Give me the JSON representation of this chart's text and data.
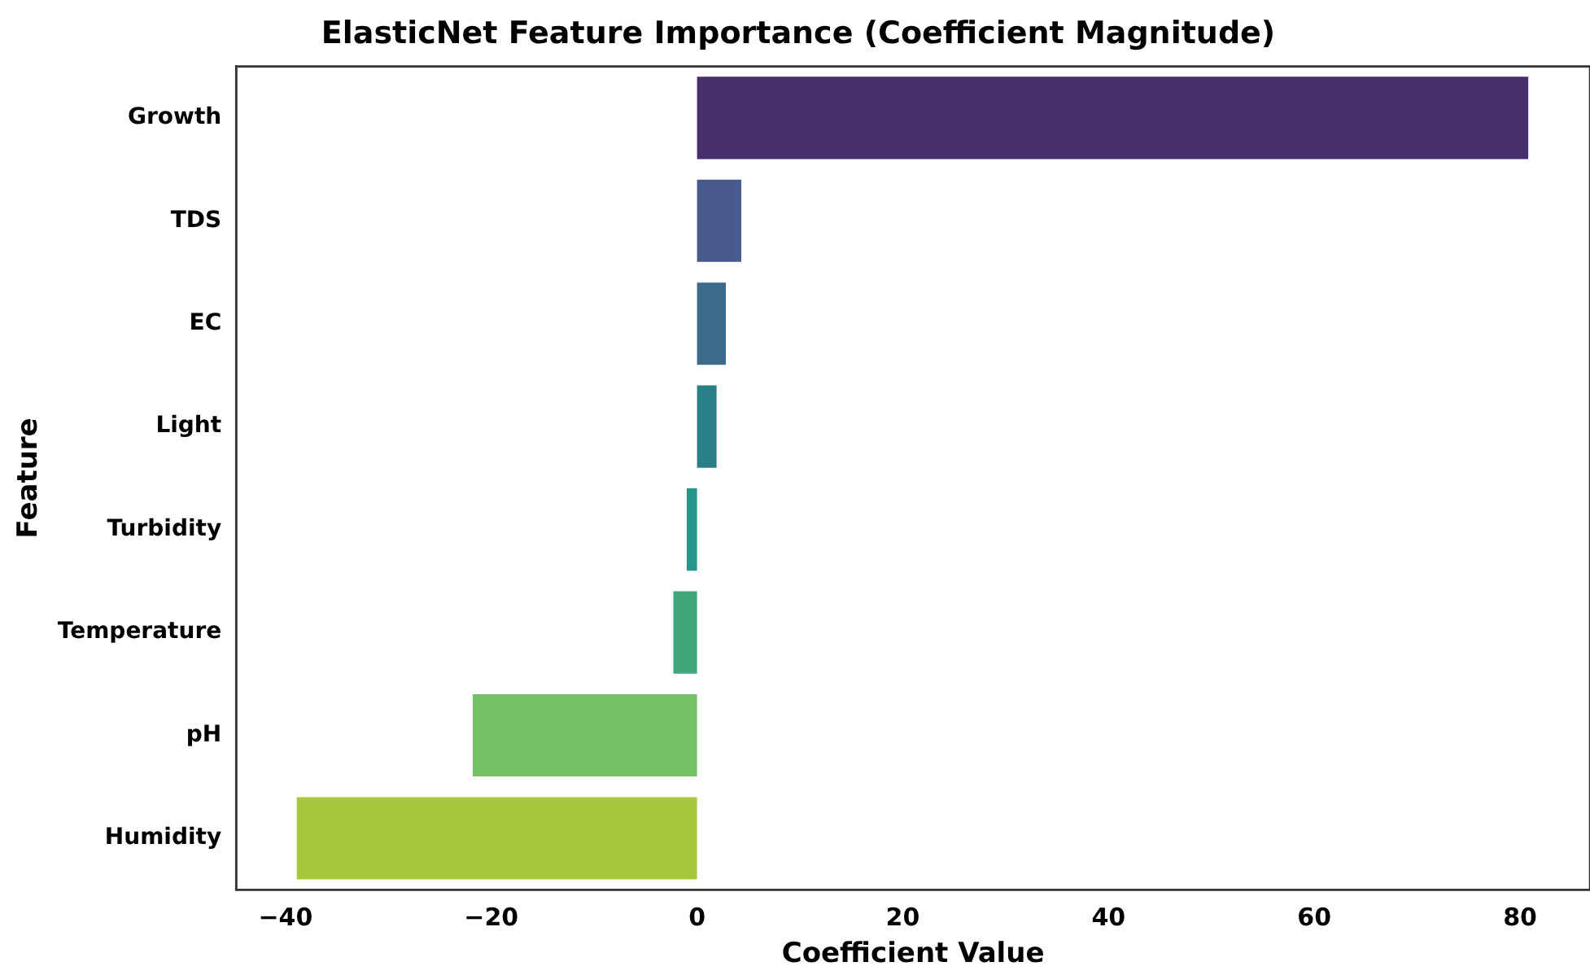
{
  "chart_data": {
    "type": "bar",
    "orientation": "horizontal",
    "title": "ElasticNet Feature Importance (Coefficient Magnitude)",
    "xlabel": "Coefficient Value",
    "ylabel": "Feature",
    "categories": [
      "Growth",
      "TDS",
      "EC",
      "Light",
      "Turbidity",
      "Temperature",
      "pH",
      "Humidity"
    ],
    "values": [
      80.8,
      4.3,
      2.8,
      1.9,
      -1.0,
      -2.3,
      -21.8,
      -38.9
    ],
    "colors": [
      "#472f6d",
      "#485a8c",
      "#3a6b8a",
      "#2b7f86",
      "#25948a",
      "#3fa77a",
      "#73c066",
      "#a8c63e"
    ],
    "xlim": [
      -44.8,
      86.8
    ],
    "xticks": [
      -40,
      -20,
      0,
      20,
      40,
      60,
      80
    ],
    "grid": false,
    "legend": false
  }
}
